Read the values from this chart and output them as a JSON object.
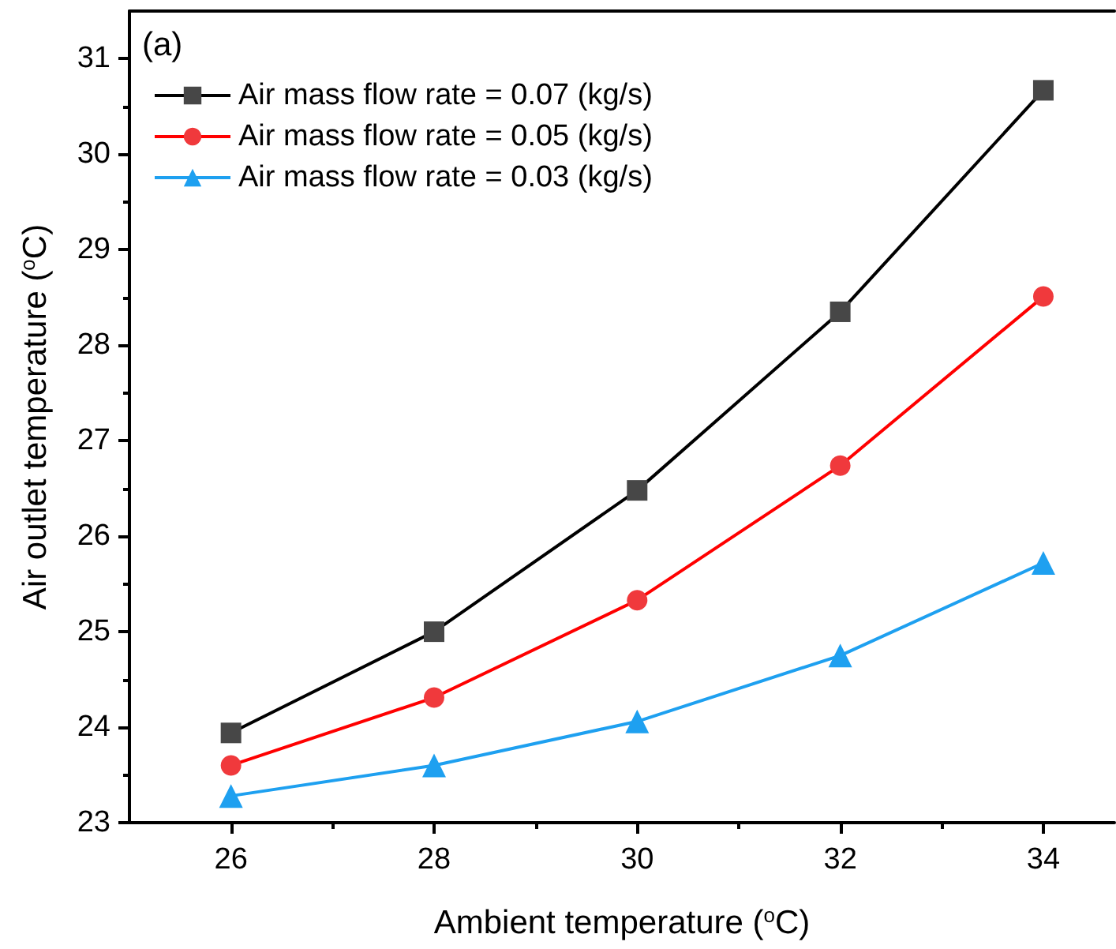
{
  "chart_data": {
    "type": "line",
    "xlabel": "Ambient temperature ($^{o}$C)",
    "ylabel": "Air outlet temperature ($^{o}$C)",
    "annotations": [
      "(a)"
    ],
    "x": [
      26,
      28,
      30,
      32,
      34
    ],
    "series": [
      {
        "name": "Air mass flow rate = 0.07 (kg/s)",
        "color": "#000000",
        "marker": "square",
        "values": [
          23.94,
          25.0,
          26.48,
          28.35,
          30.67
        ]
      },
      {
        "name": "Air mass flow rate = 0.05 (kg/s)",
        "color": "#ff0000",
        "marker": "circle",
        "values": [
          23.6,
          24.31,
          25.33,
          26.74,
          28.51
        ]
      },
      {
        "name": "Air mass flow rate = 0.03 (kg/s)",
        "color": "#1ea0f0",
        "marker": "triangle",
        "values": [
          23.28,
          23.6,
          24.06,
          24.75,
          25.72
        ]
      }
    ],
    "xlim": [
      25,
      34.7
    ],
    "xticks": [
      26,
      28,
      30,
      32,
      34
    ],
    "ylim": [
      23,
      31.5
    ],
    "yticks": [
      23,
      24,
      25,
      26,
      27,
      28,
      29,
      30,
      31
    ],
    "grid": false,
    "legend": "top left",
    "line_style": "solid"
  }
}
